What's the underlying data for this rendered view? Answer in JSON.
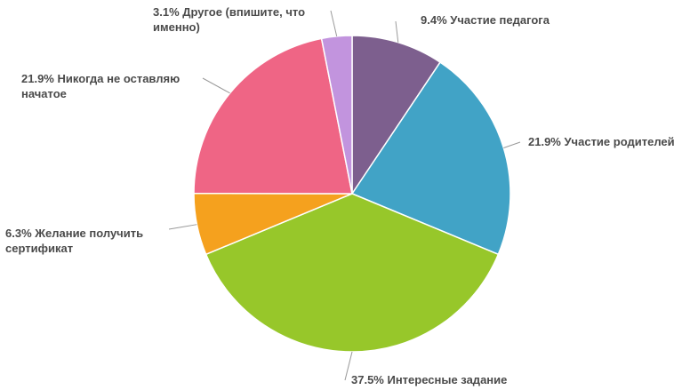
{
  "chart_data": {
    "type": "pie",
    "title": "",
    "slices": [
      {
        "label_lines": [
          "9.4% Участие педагога"
        ],
        "value": 9.4,
        "color": "#7d5f8e"
      },
      {
        "label_lines": [
          "21.9% Участие родителей"
        ],
        "value": 21.9,
        "color": "#41a3c6"
      },
      {
        "label_lines": [
          "37.5% Интересные задание"
        ],
        "value": 37.5,
        "color": "#97c72a"
      },
      {
        "label_lines": [
          "6.3% Желание получить",
          "сертификат"
        ],
        "value": 6.3,
        "color": "#f5a11e"
      },
      {
        "label_lines": [
          "21.9% Никогда не оставляю",
          "начатое"
        ],
        "value": 21.9,
        "color": "#ef6585"
      },
      {
        "label_lines": [
          "3.1% Другое (впишите, что",
          "именно)"
        ],
        "value": 3.1,
        "color": "#c294de"
      }
    ]
  }
}
